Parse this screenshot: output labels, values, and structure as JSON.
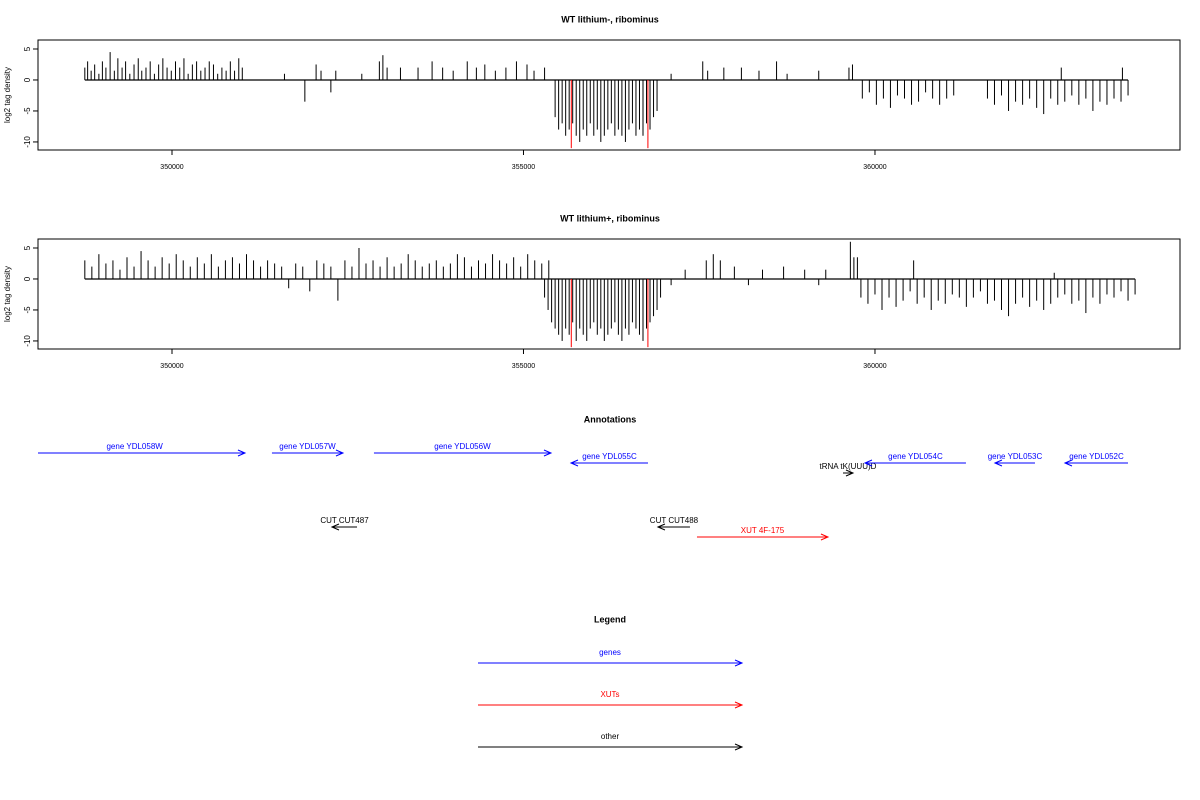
{
  "chart_data": [
    {
      "type": "bar",
      "title": "WT lithium-, ribominus",
      "y_label": "log2 tag density",
      "xlim": [
        348094,
        364339
      ],
      "ylim": [
        -11.3,
        6.45
      ],
      "xticks": [
        350000,
        355000,
        360000
      ],
      "yticks": [
        -10,
        -5,
        0,
        5
      ],
      "series": [
        {
          "color": "#000000",
          "x": [
            348760,
            348800,
            348850,
            348900,
            348960,
            349010,
            349060,
            349120,
            349180,
            349230,
            349290,
            349340,
            349400,
            349460,
            349520,
            349570,
            349630,
            349690,
            349750,
            349810,
            349870,
            349930,
            349990,
            350050,
            350110,
            350170,
            350230,
            350290,
            350350,
            350410,
            350470,
            350530,
            350590,
            350650,
            350710,
            350770,
            350830,
            350890,
            350950,
            351000,
            351600,
            351890,
            352050,
            352120,
            352260,
            352330,
            352700,
            352950,
            353000,
            353060,
            353250,
            353500,
            353700,
            353850,
            354000,
            354200,
            354330,
            354450,
            354600,
            354750,
            354900,
            355050,
            355150,
            355300,
            355450,
            355500,
            355550,
            355600,
            355650,
            355700,
            355750,
            355800,
            355850,
            355900,
            355950,
            356000,
            356050,
            356100,
            356150,
            356200,
            356250,
            356300,
            356350,
            356400,
            356450,
            356500,
            356550,
            356600,
            356650,
            356700,
            356750,
            356800,
            356850,
            356900,
            357100,
            357550,
            357620,
            357850,
            358100,
            358350,
            358600,
            358750,
            359200,
            359630,
            359680,
            359820,
            359920,
            360020,
            360120,
            360220,
            360320,
            360420,
            360520,
            360620,
            360720,
            360820,
            360920,
            361020,
            361120,
            361600,
            361700,
            361800,
            361900,
            362000,
            362100,
            362200,
            362300,
            362400,
            362500,
            362600,
            362700,
            362800,
            362900,
            363000,
            363100,
            363200,
            363300,
            363400,
            363500,
            363600,
            362650,
            363520
          ],
          "values": [
            2,
            3,
            1.5,
            2.5,
            1,
            3,
            2,
            4.5,
            1.5,
            3.5,
            2,
            3,
            1,
            2.5,
            3.5,
            1.5,
            2,
            3,
            1,
            2.5,
            3.5,
            2,
            1.5,
            3,
            2,
            3.5,
            1,
            2.5,
            3,
            1.5,
            2,
            3,
            2.5,
            1,
            2,
            1.5,
            3,
            1.5,
            3.5,
            2,
            1,
            -3.5,
            2.5,
            1.5,
            -2,
            1.5,
            1,
            3,
            4,
            2,
            2,
            2,
            3,
            2,
            1.5,
            3,
            2,
            2.5,
            1.5,
            2,
            3,
            2.5,
            1.5,
            2,
            -6,
            -8,
            -7,
            -9,
            -8,
            -7,
            -9,
            -10,
            -8,
            -9,
            -7,
            -9,
            -8,
            -10,
            -9,
            -8,
            -7,
            -9,
            -8,
            -9,
            -10,
            -8,
            -7,
            -9,
            -8,
            -9,
            -7,
            -8,
            -6,
            -5,
            1,
            3,
            1.5,
            2,
            2,
            1.5,
            3,
            1,
            1.5,
            2,
            2.5,
            -3,
            -2,
            -4,
            -3,
            -4.5,
            -2.5,
            -3,
            -4,
            -3.5,
            -2,
            -3,
            -4,
            -3,
            -2.5,
            -3,
            -4,
            -2.5,
            -5,
            -3.5,
            -4,
            -3,
            -4.5,
            -5.5,
            -3,
            -4,
            -3.5,
            -2.5,
            -4,
            -3,
            -5,
            -3.5,
            -4,
            -3,
            -3.5,
            -2.5,
            2,
            2
          ]
        },
        {
          "color": "#ff0000",
          "x": [
            355680,
            356770
          ],
          "values": [
            -11,
            -11
          ]
        }
      ]
    },
    {
      "type": "bar",
      "title": "WT lithium+, ribominus",
      "y_label": "log2 tag density",
      "xlim": [
        348094,
        364339
      ],
      "ylim": [
        -11.3,
        6.45
      ],
      "xticks": [
        350000,
        355000,
        360000
      ],
      "yticks": [
        -10,
        -5,
        0,
        5
      ],
      "series": [
        {
          "color": "#000000",
          "x": [
            348760,
            348860,
            348960,
            349060,
            349160,
            349260,
            349360,
            349460,
            349560,
            349660,
            349760,
            349860,
            349960,
            350060,
            350160,
            350260,
            350360,
            350460,
            350560,
            350660,
            350760,
            350860,
            350960,
            351060,
            351160,
            351260,
            351360,
            351460,
            351560,
            351660,
            351760,
            351860,
            351960,
            352060,
            352160,
            352260,
            352360,
            352460,
            352560,
            352660,
            352760,
            352860,
            352960,
            353060,
            353160,
            353260,
            353360,
            353460,
            353560,
            353660,
            353760,
            353860,
            353960,
            354060,
            354160,
            354260,
            354360,
            354460,
            354560,
            354660,
            354760,
            354860,
            354960,
            355060,
            355160,
            355260,
            355360,
            355300,
            355350,
            355400,
            355450,
            355500,
            355550,
            355600,
            355650,
            355700,
            355750,
            355800,
            355850,
            355900,
            355950,
            356000,
            356050,
            356100,
            356150,
            356200,
            356250,
            356300,
            356350,
            356400,
            356450,
            356500,
            356550,
            356600,
            356650,
            356700,
            356750,
            356800,
            356850,
            356900,
            356950,
            357100,
            357300,
            357600,
            357700,
            357800,
            358000,
            358200,
            358400,
            358700,
            359000,
            359200,
            359300,
            359650,
            359700,
            359750,
            359800,
            359900,
            360000,
            360100,
            360200,
            360300,
            360400,
            360500,
            360600,
            360700,
            360800,
            360900,
            361000,
            361100,
            361200,
            361300,
            361400,
            361500,
            361600,
            361700,
            361800,
            361900,
            362000,
            362100,
            362200,
            362300,
            362400,
            362500,
            362600,
            362700,
            362800,
            362900,
            363000,
            363100,
            363200,
            363300,
            363400,
            363500,
            363600,
            363700,
            360550,
            362550
          ],
          "values": [
            3,
            2,
            4,
            2.5,
            3,
            1.5,
            3.5,
            2,
            4.5,
            3,
            2,
            3.5,
            2.5,
            4,
            3,
            2,
            3.5,
            2.5,
            4,
            2,
            3,
            3.5,
            2.5,
            4,
            3,
            2,
            3,
            2.5,
            2,
            -1.5,
            2.5,
            2,
            -2,
            3,
            2.5,
            2,
            -3.5,
            3,
            2,
            5,
            2.5,
            3,
            2,
            3.5,
            2,
            2.5,
            4,
            3,
            2,
            2.5,
            3,
            2,
            2.5,
            4,
            3.5,
            2,
            3,
            2.5,
            4,
            3,
            2.5,
            3.5,
            2,
            4,
            3,
            2.5,
            3,
            -3,
            -5,
            -7,
            -8,
            -9,
            -10,
            -8,
            -9,
            -7,
            -10,
            -8,
            -9,
            -10,
            -8,
            -7,
            -9,
            -8,
            -10,
            -9,
            -8,
            -7,
            -9,
            -10,
            -8,
            -9,
            -7,
            -8,
            -9,
            -10,
            -8,
            -7,
            -6,
            -5,
            -3,
            -1,
            1.5,
            3,
            4,
            3,
            2,
            -1,
            1.5,
            2,
            1.5,
            -1,
            1.5,
            6,
            3.5,
            3.5,
            -3,
            -4,
            -2.5,
            -5,
            -3,
            -4.5,
            -3.5,
            -2,
            -4,
            -3,
            -5,
            -3.5,
            -4,
            -2.5,
            -3,
            -4.5,
            -3,
            -2,
            -4,
            -3.5,
            -5,
            -6,
            -4,
            -3,
            -4.5,
            -3.5,
            -5,
            -4,
            -3,
            -2.5,
            -4,
            -3.5,
            -5.5,
            -3,
            -4,
            -2.5,
            -3,
            -2,
            -3.5,
            -2.5,
            3,
            1
          ]
        },
        {
          "color": "#ff0000",
          "x": [
            355680,
            356770
          ],
          "values": [
            -11,
            -11
          ]
        }
      ]
    },
    {
      "type": "features",
      "title": "Annotations",
      "xlim": [
        348094,
        364339
      ],
      "features": [
        {
          "label": "gene YDL058W",
          "kind": "gene",
          "strand": "+",
          "start": 347900,
          "end": 351038,
          "color": "#0000ff"
        },
        {
          "label": "gene YDL057W",
          "kind": "gene",
          "strand": "+",
          "start": 351422,
          "end": 352432,
          "color": "#0000ff"
        },
        {
          "label": "gene YDL056W",
          "kind": "gene",
          "strand": "+",
          "start": 352873,
          "end": 355391,
          "color": "#0000ff"
        },
        {
          "label": "gene YDL055C",
          "kind": "gene",
          "strand": "-",
          "start": 355676,
          "end": 356771,
          "color": "#0000ff"
        },
        {
          "label": "tRNA tK(UUU)D",
          "kind": "tRNA",
          "strand": "+",
          "start": 359545,
          "end": 359687,
          "color": "#000000"
        },
        {
          "label": "gene YDL054C",
          "kind": "gene",
          "strand": "-",
          "start": 359858,
          "end": 361294,
          "color": "#0000ff"
        },
        {
          "label": "gene YDL053C",
          "kind": "gene",
          "strand": "-",
          "start": 361707,
          "end": 362276,
          "color": "#0000ff"
        },
        {
          "label": "gene YDL052C",
          "kind": "gene",
          "strand": "-",
          "start": 362703,
          "end": 363599,
          "color": "#0000ff"
        },
        {
          "label": "CUT CUT487",
          "kind": "CUT",
          "strand": "-",
          "start": 352276,
          "end": 352632,
          "color": "#000000"
        },
        {
          "label": "CUT CUT488",
          "kind": "CUT",
          "strand": "-",
          "start": 356913,
          "end": 357368,
          "color": "#000000"
        },
        {
          "label": "XUT 4F-175",
          "kind": "XUT",
          "strand": "+",
          "start": 357468,
          "end": 359331,
          "color": "#ff0000"
        }
      ]
    }
  ],
  "legend": {
    "title": "Legend",
    "items": [
      {
        "label": "genes",
        "color": "#0000ff"
      },
      {
        "label": "XUTs",
        "color": "#ff0000"
      },
      {
        "label": "other",
        "color": "#000000"
      }
    ]
  }
}
